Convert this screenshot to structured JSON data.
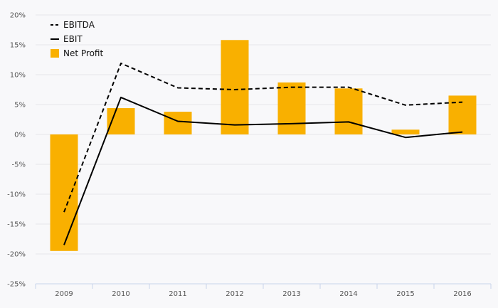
{
  "chart_data": {
    "type": "bar",
    "categories": [
      "2009",
      "2010",
      "2011",
      "2012",
      "2013",
      "2014",
      "2015",
      "2016"
    ],
    "ylim": [
      -25,
      20
    ],
    "yticks": [
      20,
      15,
      10,
      5,
      0,
      -5,
      -10,
      -15,
      -20,
      -25
    ],
    "ytick_labels": [
      "20%",
      "15%",
      "10%",
      "5%",
      "0%",
      "-5%",
      "-10%",
      "-15%",
      "-20%",
      "-25%"
    ],
    "grid": true,
    "legend_position": "top-left",
    "series": [
      {
        "name": "EBITDA",
        "type": "line",
        "style": "dashed",
        "color": "#000000",
        "values": [
          -13.0,
          11.9,
          7.8,
          7.5,
          7.9,
          7.9,
          4.9,
          5.4
        ]
      },
      {
        "name": "EBIT",
        "type": "line",
        "style": "solid",
        "color": "#000000",
        "values": [
          -18.5,
          6.2,
          2.2,
          1.6,
          1.8,
          2.1,
          -0.5,
          0.4
        ]
      },
      {
        "name": "Net Profit",
        "type": "bar",
        "color": "#f9b000",
        "values": [
          -19.5,
          4.4,
          3.8,
          15.8,
          8.7,
          7.7,
          0.8,
          6.5
        ]
      }
    ]
  }
}
